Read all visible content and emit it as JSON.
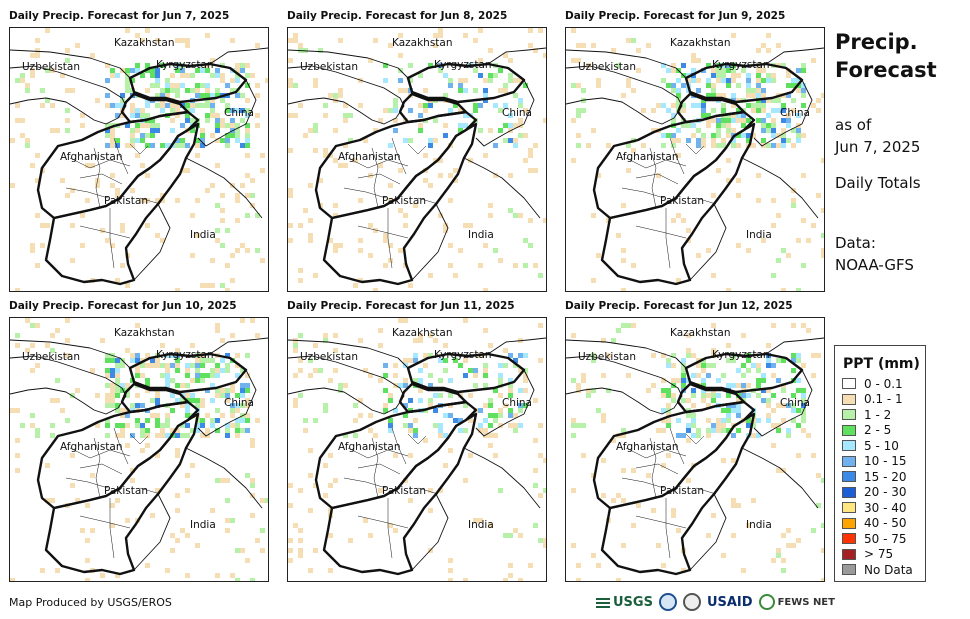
{
  "panels": [
    {
      "title": "Daily Precip. Forecast for Jun 7, 2025"
    },
    {
      "title": "Daily Precip. Forecast for Jun 8, 2025"
    },
    {
      "title": "Daily Precip. Forecast for Jun 9, 2025"
    },
    {
      "title": "Daily Precip. Forecast for Jun 10, 2025"
    },
    {
      "title": "Daily Precip. Forecast for Jun 11, 2025"
    },
    {
      "title": "Daily Precip. Forecast for Jun 12, 2025"
    }
  ],
  "map_labels": {
    "kazakhstan": "Kazakhstan",
    "uzbekistan": "Uzbekistan",
    "kyrgyzstan": "Kyrgyzstan",
    "china": "China",
    "afghanistan": "Afghanistan",
    "pakistan": "Pakistan",
    "india": "India"
  },
  "side_panel": {
    "title": "Precip. Forecast",
    "as_of_label": "as of",
    "as_of_date": "Jun 7, 2025",
    "totals": "Daily Totals",
    "data_label": "Data:",
    "data_source": "NOAA-GFS"
  },
  "legend": {
    "title": "PPT (mm)",
    "items": [
      {
        "label": "0 - 0.1",
        "color": "#ffffff"
      },
      {
        "label": "0.1 - 1",
        "color": "#f5deb3"
      },
      {
        "label": "1 - 2",
        "color": "#b7f0a8"
      },
      {
        "label": "2 - 5",
        "color": "#5fe05f"
      },
      {
        "label": "5 - 10",
        "color": "#a6e8ff"
      },
      {
        "label": "10 - 15",
        "color": "#6fb2ee"
      },
      {
        "label": "15 - 20",
        "color": "#3d8ae6"
      },
      {
        "label": "20 - 30",
        "color": "#1c5ed6"
      },
      {
        "label": "30 - 40",
        "color": "#ffe680"
      },
      {
        "label": "40 - 50",
        "color": "#ffa500"
      },
      {
        "label": "50 - 75",
        "color": "#ff3300"
      },
      {
        "label": "> 75",
        "color": "#a52020"
      },
      {
        "label": "No Data",
        "color": "#9a9a9a"
      }
    ]
  },
  "footer": {
    "credit": "Map Produced by USGS/EROS"
  },
  "logos": [
    {
      "name": "USGS",
      "icon": "usgs-logo"
    },
    {
      "name": "NOAA",
      "icon": "noaa-logo"
    },
    {
      "name": "DOI",
      "icon": "doi-seal"
    },
    {
      "name": "USAID",
      "icon": "usaid-logo"
    },
    {
      "name": "FEWS NET",
      "icon": "fewsnet-logo"
    }
  ]
}
